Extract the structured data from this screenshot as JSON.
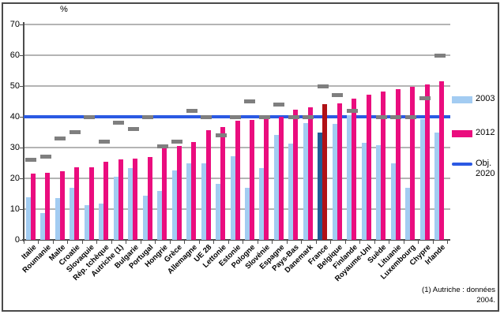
{
  "figure": {
    "unit_label": "%",
    "footnote_line1": "(1) Autriche : données",
    "footnote_line2": "2004."
  },
  "legend": {
    "items": [
      {
        "label": "2003"
      },
      {
        "label": "2012"
      },
      {
        "label_line1": "Obj.",
        "label_line2": "2020"
      }
    ]
  },
  "chart_data": {
    "type": "bar",
    "title": "",
    "xlabel": "",
    "ylabel": "%",
    "ylim": [
      0,
      70
    ],
    "y_ticks": [
      0,
      10,
      20,
      30,
      40,
      50,
      60,
      70
    ],
    "grid": true,
    "legend_position": "right",
    "categories": [
      "Italie",
      "Roumanie",
      "Malte",
      "Croatie",
      "Slovaquie",
      "Rép. tchèque",
      "Autriche (1)",
      "Bulgarie",
      "Portugal",
      "Hongrie",
      "Grèce",
      "Allemagne",
      "UE 28",
      "Lettonie",
      "Estonie",
      "Pologne",
      "Slovénie",
      "Espagne",
      "Pays-Bas",
      "Danemark",
      "France",
      "Belgique",
      "Finlande",
      "Royaume-Uni",
      "Suède",
      "Lituanie",
      "Luxembourg",
      "Chypre",
      "Irlande"
    ],
    "series": [
      {
        "name": "2003",
        "values": [
          13.8,
          8.8,
          13.5,
          16.8,
          11.4,
          11.9,
          20.5,
          23.4,
          14.4,
          15.8,
          22.6,
          25.0,
          25.0,
          18.3,
          27.2,
          16.8,
          23.4,
          34.0,
          31.4,
          38.0,
          34.9,
          37.6,
          40.4,
          31.5,
          30.8,
          25.0,
          16.9,
          39.2,
          35.0
        ]
      },
      {
        "name": "2012",
        "values": [
          21.5,
          21.7,
          22.3,
          23.6,
          23.6,
          25.4,
          26.1,
          26.5,
          27.0,
          29.7,
          30.6,
          31.7,
          35.7,
          36.7,
          38.7,
          38.9,
          39.2,
          40.1,
          42.3,
          43.2,
          44.0,
          44.4,
          46.0,
          47.1,
          48.2,
          49.0,
          49.8,
          50.4,
          51.5
        ]
      },
      {
        "name": "Objectif national (tiret gris)",
        "values": [
          26,
          27,
          33,
          35,
          40,
          32,
          38,
          36,
          40,
          30.3,
          32,
          42,
          40,
          34,
          40,
          45,
          40,
          44,
          40,
          40,
          50,
          47,
          42,
          null,
          40,
          40,
          40,
          46,
          60
        ]
      }
    ],
    "eu_target_line": {
      "name": "Obj. 2020",
      "value": 40
    },
    "highlight": {
      "category": "France",
      "color_2003": "#1e5c96",
      "color_2012": "#b01116"
    },
    "colors": {
      "s2003": "#a3ccf2",
      "s2012": "#ea0d7e",
      "target_line": "#2b59e3",
      "national_target_dash": "#7f7f7f"
    },
    "footnote": "(1) Autriche : données 2004."
  }
}
